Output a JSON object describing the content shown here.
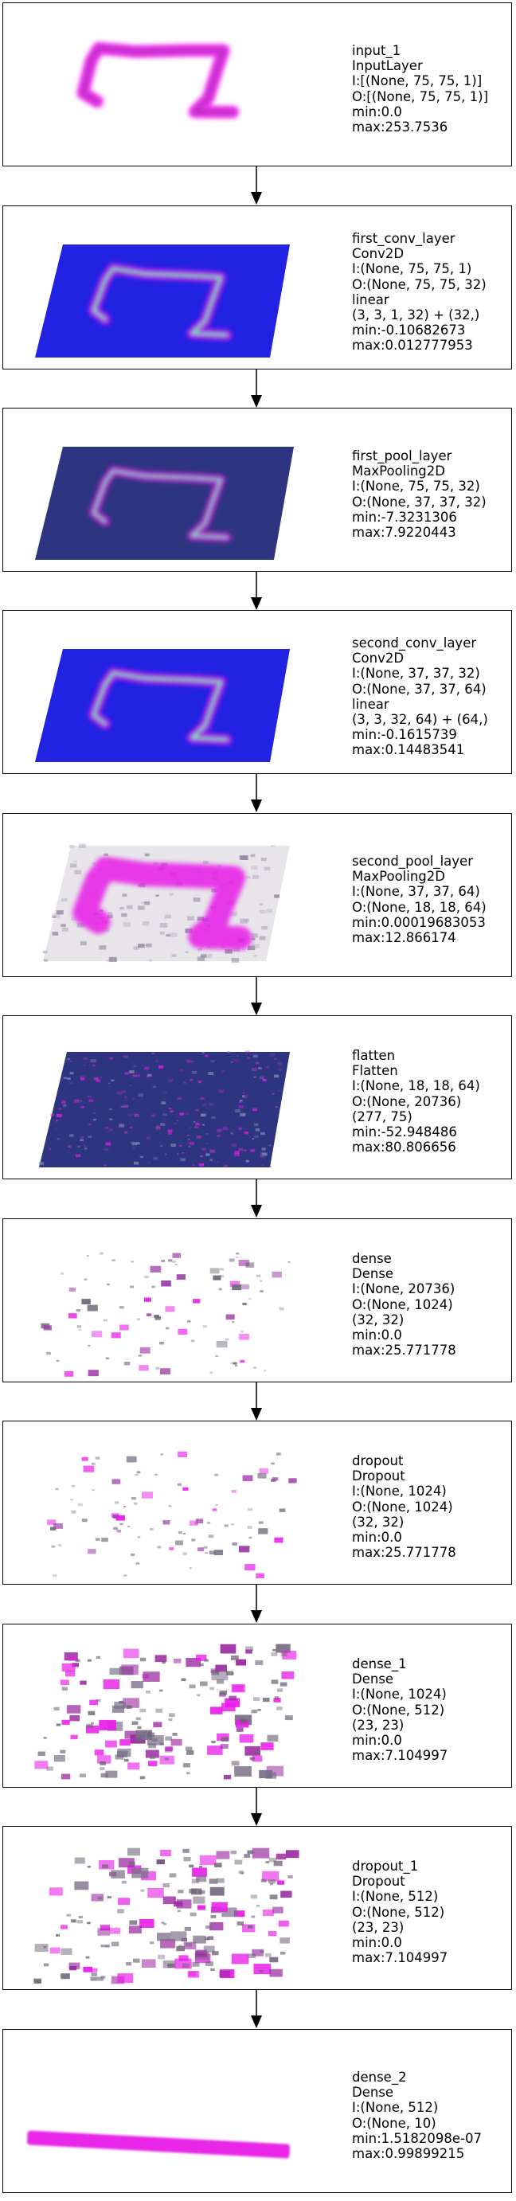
{
  "layers": [
    {
      "name": "input_1",
      "type": "InputLayer",
      "lines": [
        "I:[(None, 75, 75, 1)]",
        "O:[(None, 75, 75, 1)]",
        "min:0.0",
        "max:253.7536"
      ],
      "viz": "digit-input"
    },
    {
      "name": "first_conv_layer",
      "type": "Conv2D",
      "lines": [
        "I:(None, 75, 75, 1)",
        "O:(None, 75, 75, 32)",
        "linear",
        "(3, 3, 1, 32) + (32,)",
        "min:-0.10682673",
        "max:0.012777953"
      ],
      "viz": "conv-blue"
    },
    {
      "name": "first_pool_layer",
      "type": "MaxPooling2D",
      "lines": [
        "I:(None, 75, 75, 32)",
        "O:(None, 37, 37, 32)",
        "min:-7.3231306",
        "max:7.9220443"
      ],
      "viz": "pool-navy"
    },
    {
      "name": "second_conv_layer",
      "type": "Conv2D",
      "lines": [
        "I:(None, 37, 37, 32)",
        "O:(None, 37, 37, 64)",
        "linear",
        "(3, 3, 32, 64) + (64,)",
        "min:-0.1615739",
        "max:0.14483541"
      ],
      "viz": "conv2-blue"
    },
    {
      "name": "second_pool_layer",
      "type": "MaxPooling2D",
      "lines": [
        "I:(None, 37, 37, 64)",
        "O:(None, 18, 18, 64)",
        "min:0.00019683053",
        "max:12.866174"
      ],
      "viz": "pool2-magenta"
    },
    {
      "name": "flatten",
      "type": "Flatten",
      "lines": [
        "I:(None, 18, 18, 64)",
        "O:(None, 20736)",
        "(277, 75)",
        "min:-52.948486",
        "max:80.806656"
      ],
      "viz": "flatten-navy"
    },
    {
      "name": "dense",
      "type": "Dense",
      "lines": [
        "I:(None, 20736)",
        "O:(None, 1024)",
        "(32, 32)",
        "min:0.0",
        "max:25.771778"
      ],
      "viz": "sparse-small"
    },
    {
      "name": "dropout",
      "type": "Dropout",
      "lines": [
        "I:(None, 1024)",
        "O:(None, 1024)",
        "(32, 32)",
        "min:0.0",
        "max:25.771778"
      ],
      "viz": "sparse-small"
    },
    {
      "name": "dense_1",
      "type": "Dense",
      "lines": [
        "I:(None, 1024)",
        "O:(None, 512)",
        "(23, 23)",
        "min:0.0",
        "max:7.104997"
      ],
      "viz": "sparse-dense"
    },
    {
      "name": "dropout_1",
      "type": "Dropout",
      "lines": [
        "I:(None, 512)",
        "O:(None, 512)",
        "(23, 23)",
        "min:0.0",
        "max:7.104997"
      ],
      "viz": "sparse-dense"
    },
    {
      "name": "dense_2",
      "type": "Dense",
      "lines": [
        "I:(None, 512)",
        "O:(None, 10)",
        "min:1.5182098e-07",
        "max:0.99899215"
      ],
      "viz": "bar-output"
    }
  ],
  "colors": {
    "magenta": "#e81ce8",
    "blue": "#1a1af0",
    "navy": "#2e3580",
    "green": "#7af5c0",
    "gray": "#6e6878"
  }
}
